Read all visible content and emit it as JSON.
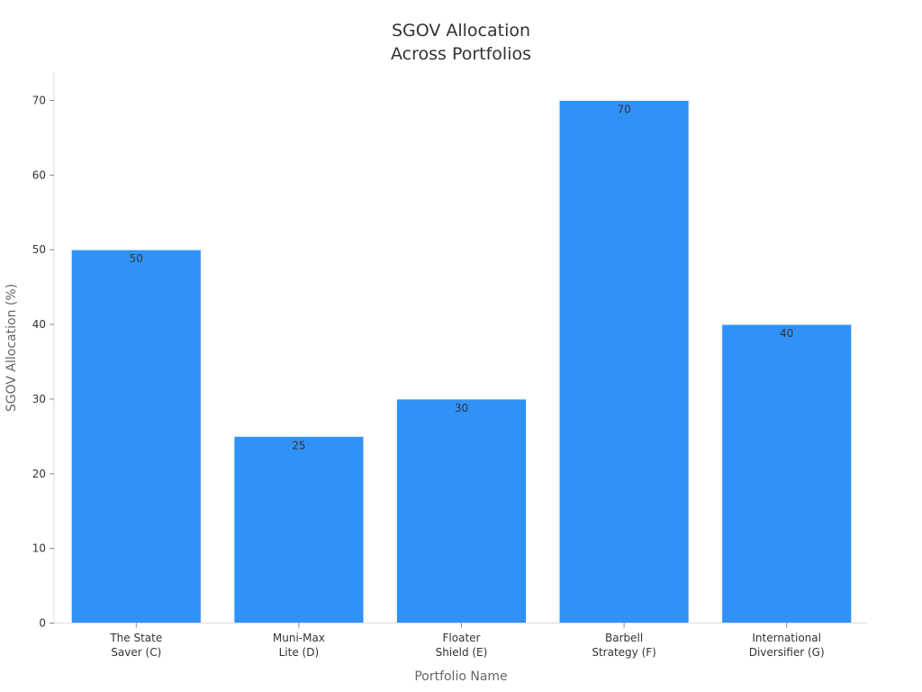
{
  "chart_data": {
    "type": "bar",
    "title_lines": [
      "SGOV Allocation",
      "Across Portfolios"
    ],
    "xlabel": "Portfolio Name",
    "ylabel": "SGOV Allocation (%)",
    "categories": [
      [
        "The State",
        "Saver (C)"
      ],
      [
        "Muni-Max",
        "Lite (D)"
      ],
      [
        "Floater",
        "Shield (E)"
      ],
      [
        "Barbell",
        "Strategy (F)"
      ],
      [
        "International",
        "Diversifier (G)"
      ]
    ],
    "values": [
      50,
      25,
      30,
      70,
      40
    ],
    "yticks": [
      0,
      10,
      20,
      30,
      40,
      50,
      60,
      70
    ],
    "ylim": [
      0,
      73.5
    ],
    "grid": false,
    "bar_color": "#3092F7",
    "data_labels": true
  }
}
